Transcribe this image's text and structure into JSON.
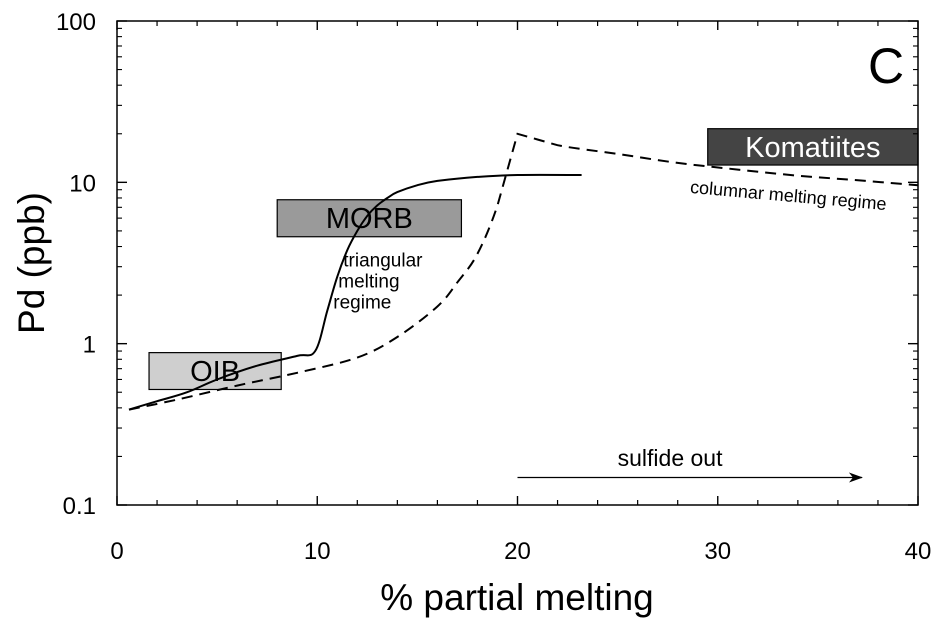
{
  "chart_data": {
    "type": "line",
    "panel_label": "C",
    "xlabel": "% partial melting",
    "ylabel": "Pd (ppb)",
    "xlim": [
      0,
      40
    ],
    "ylim": [
      0.1,
      100
    ],
    "yscale": "log",
    "xticks": [
      0,
      10,
      20,
      30,
      40
    ],
    "yticks": [
      0.1,
      1,
      10,
      100
    ],
    "ytick_labels": [
      "0.1",
      "1",
      "10",
      "100"
    ],
    "grid": false,
    "series": [
      {
        "style": "solid",
        "x": [
          0.6,
          2,
          3.5,
          5,
          7,
          9,
          9.9,
          10.5,
          11,
          11.5,
          12,
          12.5,
          13,
          13.5,
          14,
          15,
          16,
          18,
          20,
          23.2
        ],
        "y": [
          0.39,
          0.44,
          0.5,
          0.6,
          0.73,
          0.84,
          0.9,
          1.6,
          2.6,
          3.8,
          5.0,
          6.2,
          7.2,
          8.0,
          8.7,
          9.6,
          10.2,
          10.8,
          11.1,
          11.1
        ]
      },
      {
        "style": "dashed",
        "x": [
          0.6,
          3,
          6,
          9,
          12,
          14,
          16,
          17,
          18,
          19,
          20,
          22,
          25,
          28,
          31,
          34,
          37,
          40
        ],
        "y": [
          0.39,
          0.45,
          0.55,
          0.66,
          0.82,
          1.1,
          1.7,
          2.4,
          3.6,
          7.2,
          20,
          17,
          15,
          13.2,
          12,
          11,
          10.3,
          9.6
        ]
      }
    ],
    "regions": [
      {
        "label": "OIB",
        "x": [
          1.6,
          8.2
        ],
        "y": [
          0.52,
          0.88
        ],
        "color": "#cfcfcf",
        "text_color": "#000000"
      },
      {
        "label": "MORB",
        "x": [
          8.0,
          17.2
        ],
        "y": [
          4.6,
          7.8
        ],
        "color": "#9a9a9a",
        "text_color": "#000000"
      },
      {
        "label": "Komatiites",
        "x": [
          29.5,
          40.0
        ],
        "y": [
          12.8,
          21.5
        ],
        "color": "#444444",
        "text_color": "#ffffff"
      }
    ],
    "annotations": [
      {
        "lines": [
          "triangular",
          "melting",
          "regime"
        ],
        "x": 11.3,
        "y": 3.0
      },
      {
        "lines": [
          "columnar melting regime"
        ],
        "x": 28.6,
        "y": 8.6,
        "rotate_deg": 5
      },
      {
        "lines": [
          "sulfide out"
        ],
        "x": 25.0,
        "y": 0.175
      }
    ],
    "arrow": {
      "x_start": 20,
      "x_end": 37.2,
      "y": 0.148
    }
  }
}
